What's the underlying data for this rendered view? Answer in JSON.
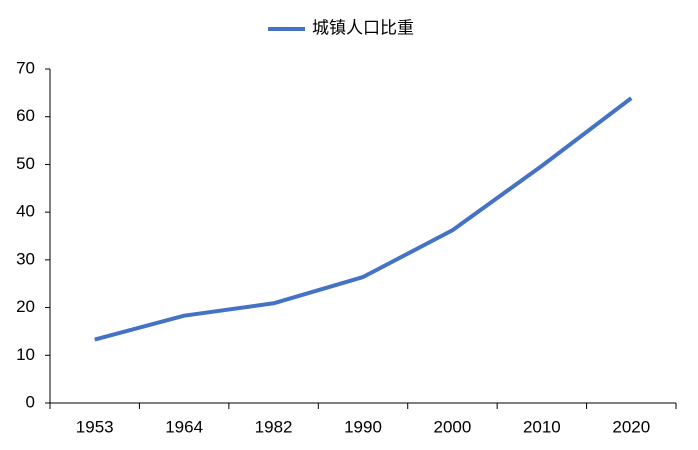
{
  "chart_data": {
    "type": "line",
    "categories": [
      "1953",
      "1964",
      "1982",
      "1990",
      "2000",
      "2010",
      "2020"
    ],
    "series": [
      {
        "name": "城镇人口比重",
        "color": "#4472c4",
        "values": [
          13.3,
          18.3,
          20.9,
          26.4,
          36.2,
          49.7,
          63.9
        ]
      }
    ],
    "ylim": [
      0,
      70
    ],
    "yticks": [
      0,
      10,
      20,
      30,
      40,
      50,
      60,
      70
    ],
    "grid": false,
    "legend": "top"
  }
}
